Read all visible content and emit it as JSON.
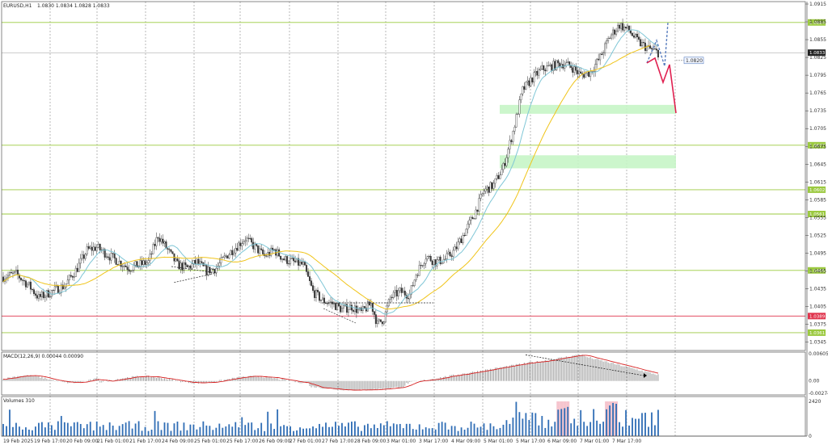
{
  "header": {
    "symbol_tf": "EURUSD,H1",
    "ohlc": "1.0830 1.0834 1.0828 1.0833"
  },
  "colors": {
    "bull": "#2f6db5",
    "bear": "#2f6db5",
    "ma_fast": "#7fc6d6",
    "ma_slow": "#f0c419",
    "level_green": "#9bc93f",
    "level_red": "#e0344d",
    "zone": "#c6f5c6",
    "macd_hist": "#9e9e9e",
    "macd_signal": "#d62020",
    "volume": "#2f6db5",
    "volume_highlight": "#f4b6c2",
    "grid": "#8a8a8a",
    "projection_up": "#5b7fbf",
    "projection_down": "#e02050"
  },
  "chart_data": {
    "type": "candlestick",
    "title": "EURUSD,H1",
    "y_range": [
      1.0335,
      1.0915
    ],
    "y_ticks": [
      "1.0915",
      "1.0885",
      "1.0855",
      "1.0825",
      "1.0795",
      "1.0765",
      "1.0735",
      "1.0705",
      "1.0675",
      "1.0645",
      "1.0615",
      "1.0585",
      "1.0555",
      "1.0525",
      "1.0495",
      "1.0465",
      "1.0435",
      "1.0405",
      "1.0375",
      "1.0345"
    ],
    "x_labels": [
      "19 Feb 2025",
      "19 Feb 17:00",
      "20 Feb 09:00",
      "21 Feb 01:00",
      "21 Feb 17:00",
      "24 Feb 09:00",
      "25 Feb 01:00",
      "25 Feb 17:00",
      "26 Feb 09:00",
      "27 Feb 01:00",
      "27 Feb 17:00",
      "28 Feb 09:00",
      "3 Mar 01:00",
      "3 Mar 17:00",
      "4 Mar 09:00",
      "5 Mar 01:00",
      "5 Mar 17:00",
      "6 Mar 09:00",
      "7 Mar 01:00",
      "7 Mar 17:00"
    ],
    "price_path": [
      [
        0,
        1.0455
      ],
      [
        8,
        1.046
      ],
      [
        16,
        1.044
      ],
      [
        22,
        1.042
      ],
      [
        30,
        1.043
      ],
      [
        38,
        1.044
      ],
      [
        46,
        1.047
      ],
      [
        52,
        1.05
      ],
      [
        58,
        1.0505
      ],
      [
        66,
        1.049
      ],
      [
        72,
        1.048
      ],
      [
        78,
        1.047
      ],
      [
        84,
        1.0475
      ],
      [
        90,
        1.048
      ],
      [
        96,
        1.0525
      ],
      [
        102,
        1.05
      ],
      [
        108,
        1.0475
      ],
      [
        114,
        1.047
      ],
      [
        120,
        1.048
      ],
      [
        126,
        1.0465
      ],
      [
        132,
        1.047
      ],
      [
        138,
        1.049
      ],
      [
        144,
        1.0505
      ],
      [
        150,
        1.052
      ],
      [
        156,
        1.0505
      ],
      [
        162,
        1.049
      ],
      [
        168,
        1.05
      ],
      [
        174,
        1.0485
      ],
      [
        180,
        1.048
      ],
      [
        186,
        1.0475
      ],
      [
        192,
        1.043
      ],
      [
        198,
        1.0415
      ],
      [
        204,
        1.041
      ],
      [
        210,
        1.04
      ],
      [
        216,
        1.0405
      ],
      [
        222,
        1.0395
      ],
      [
        228,
        1.041
      ],
      [
        232,
        1.0375
      ],
      [
        236,
        1.0385
      ],
      [
        240,
        1.042
      ],
      [
        246,
        1.043
      ],
      [
        252,
        1.0425
      ],
      [
        256,
        1.046
      ],
      [
        262,
        1.049
      ],
      [
        268,
        1.048
      ],
      [
        274,
        1.0485
      ],
      [
        280,
        1.05
      ],
      [
        286,
        1.053
      ],
      [
        292,
        1.056
      ],
      [
        298,
        1.06
      ],
      [
        304,
        1.061
      ],
      [
        310,
        1.064
      ],
      [
        316,
        1.07
      ],
      [
        322,
        1.077
      ],
      [
        328,
        1.079
      ],
      [
        334,
        1.0805
      ],
      [
        340,
        1.081
      ],
      [
        346,
        1.0815
      ],
      [
        352,
        1.081
      ],
      [
        358,
        1.0795
      ],
      [
        364,
        1.08
      ],
      [
        370,
        1.0825
      ],
      [
        376,
        1.086
      ],
      [
        382,
        1.088
      ],
      [
        388,
        1.087
      ],
      [
        394,
        1.085
      ],
      [
        400,
        1.084
      ],
      [
        406,
        1.0833
      ]
    ],
    "horizontal_levels": [
      {
        "label": "1.0884",
        "price": 1.0884,
        "kind": "green"
      },
      {
        "label": "1.0677",
        "price": 1.0677,
        "kind": "green"
      },
      {
        "label": "1.0602",
        "price": 1.0602,
        "kind": "green"
      },
      {
        "label": "1.0561",
        "price": 1.0561,
        "kind": "green"
      },
      {
        "label": "1.0466",
        "price": 1.0466,
        "kind": "green"
      },
      {
        "label": "1.0389",
        "price": 1.0389,
        "kind": "red"
      },
      {
        "label": "1.0361",
        "price": 1.0361,
        "kind": "green"
      }
    ],
    "current_price": "1.0833",
    "marker_price": "1.0820",
    "zones": [
      {
        "from": 1.073,
        "to": 1.0745
      },
      {
        "from": 1.0638,
        "to": 1.066
      }
    ],
    "indicators": {
      "macd": {
        "label": "MACD(12,26,9) 0.00044 0.00090",
        "ticks": [
          "0.00605",
          "0.00",
          "-0.00274"
        ],
        "range": [
          -0.00274,
          0.00605
        ]
      },
      "volumes": {
        "label": "Volumes 310",
        "ticks": [
          "2420",
          "0"
        ],
        "range": [
          0,
          2420
        ]
      }
    }
  }
}
